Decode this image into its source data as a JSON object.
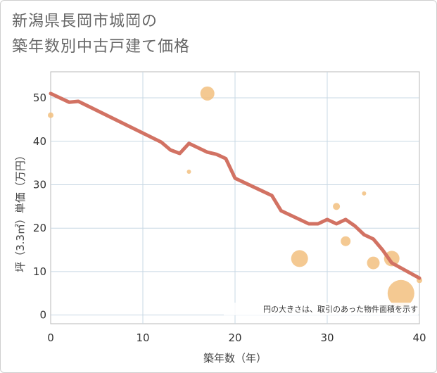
{
  "title_line1": "新潟県長岡市城岡の",
  "title_line2": "築年数別中古戸建て価格",
  "chart_data": {
    "type": "scatter",
    "title": "新潟県長岡市城岡の築年数別中古戸建て価格",
    "xlabel": "築年数（年）",
    "ylabel": "坪（3.3㎡）単価（万円）",
    "xlim": [
      0,
      40
    ],
    "ylim": [
      -2,
      56
    ],
    "xticks": [
      0,
      10,
      20,
      30,
      40
    ],
    "yticks": [
      0,
      10,
      20,
      30,
      40,
      50
    ],
    "grid": true,
    "note": "円の大きさは、取引のあった物件面積を示す",
    "colors": {
      "line": "#d27263",
      "bubble": "#f2c07f",
      "grid": "#c8d8e4"
    },
    "series": [
      {
        "name": "trend",
        "type": "line",
        "x": [
          0,
          2,
          3,
          12,
          13,
          14,
          15,
          17,
          18,
          19,
          20,
          24,
          25,
          28,
          29,
          30,
          31,
          32,
          33,
          34,
          35,
          36,
          37,
          40
        ],
        "y": [
          51,
          49,
          49.2,
          39.8,
          38,
          37.2,
          39.5,
          37.5,
          37,
          36,
          31.5,
          27.5,
          24,
          21,
          21,
          22,
          21,
          22,
          20.5,
          18.5,
          17.5,
          15,
          12,
          8.5
        ]
      },
      {
        "name": "transactions",
        "type": "bubble",
        "points": [
          {
            "x": 0,
            "y": 46,
            "size": 4
          },
          {
            "x": 17,
            "y": 51,
            "size": 10
          },
          {
            "x": 15,
            "y": 33,
            "size": 3
          },
          {
            "x": 27,
            "y": 13,
            "size": 12
          },
          {
            "x": 31,
            "y": 25,
            "size": 5
          },
          {
            "x": 32,
            "y": 17,
            "size": 7
          },
          {
            "x": 34,
            "y": 28,
            "size": 3
          },
          {
            "x": 35,
            "y": 12,
            "size": 9
          },
          {
            "x": 37,
            "y": 13,
            "size": 11
          },
          {
            "x": 38,
            "y": 5,
            "size": 19
          },
          {
            "x": 40,
            "y": 8,
            "size": 4
          }
        ]
      }
    ]
  }
}
